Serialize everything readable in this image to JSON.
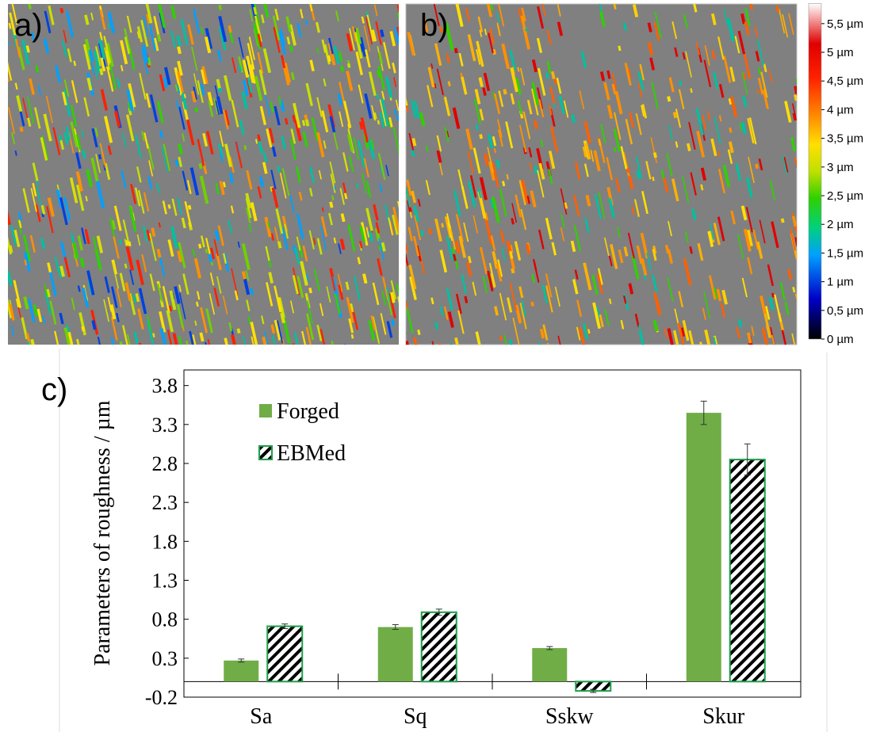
{
  "panels": {
    "a": "a)",
    "b": "b)"
  },
  "colorbar": {
    "lim": [
      0,
      5.85
    ],
    "ticks": [
      {
        "value": 0,
        "label": "0 µm"
      },
      {
        "value": 0.5,
        "label": "0,5 µm"
      },
      {
        "value": 1,
        "label": "1 µm"
      },
      {
        "value": 1.5,
        "label": "1,5 µm"
      },
      {
        "value": 2,
        "label": "2 µm"
      },
      {
        "value": 2.5,
        "label": "2,5 µm"
      },
      {
        "value": 3,
        "label": "3 µm"
      },
      {
        "value": 3.5,
        "label": "3,5 µm"
      },
      {
        "value": 4,
        "label": "4 µm"
      },
      {
        "value": 4.5,
        "label": "4,5 µm"
      },
      {
        "value": 5,
        "label": "5 µm"
      },
      {
        "value": 5.5,
        "label": "5,5 µm"
      }
    ]
  },
  "chart_data": {
    "type": "bar",
    "panel_label": "c)",
    "ylabel": "Parameters of roughness / µm",
    "categories": [
      "Sa",
      "Sq",
      "Sskw",
      "Skur"
    ],
    "series": [
      {
        "name": "Forged",
        "color": "#70ad47",
        "values": [
          0.27,
          0.7,
          0.43,
          3.45
        ],
        "errors": [
          0.02,
          0.03,
          0.02,
          0.15
        ]
      },
      {
        "name": "EBMed",
        "color": "#1e9e4a",
        "hatch": true,
        "values": [
          0.71,
          0.89,
          -0.12,
          2.85
        ],
        "errors": [
          0.03,
          0.04,
          0.02,
          0.2
        ]
      }
    ],
    "ylim": [
      -0.2,
      4.0
    ],
    "yticks": [
      -0.2,
      0.3,
      0.8,
      1.3,
      1.8,
      2.3,
      2.8,
      3.3,
      3.8
    ],
    "legend": "upper-left"
  }
}
